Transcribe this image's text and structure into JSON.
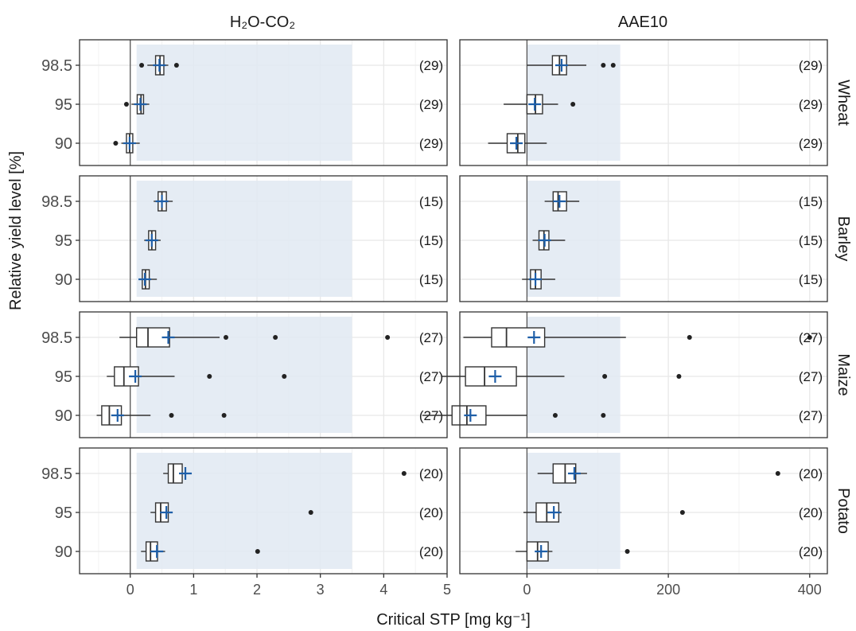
{
  "chart_data": {
    "type": "boxplot",
    "layout": "faceted grid: 4 crop rows x 2 method columns, horizontal boxes",
    "col_titles": [
      "H₂O-CO₂",
      "AAE10"
    ],
    "row_titles": [
      "Wheat",
      "Barley",
      "Maize",
      "Potato"
    ],
    "xlabel": "Critical STP [mg kg⁻¹]",
    "ylabel": "Relative yield level [%]",
    "y_categories": [
      "98.5",
      "95",
      "90"
    ],
    "columns": [
      {
        "name": "H₂O-CO₂",
        "xlim": [
          -0.8,
          5.0
        ],
        "xticks": [
          0,
          1,
          2,
          3,
          4,
          5
        ],
        "shaded_range": [
          0.1,
          3.5
        ],
        "ref_line": 0
      },
      {
        "name": "AAE10",
        "xlim": [
          -95,
          425
        ],
        "xticks": [
          0,
          200,
          400
        ],
        "shaded_range": [
          0,
          132
        ],
        "ref_line": 0
      }
    ],
    "colors": {
      "mean_marker": "#1f5fa8",
      "shaded": "#e1e9f2",
      "box": "#333333",
      "grid": "#e8e8e8"
    },
    "panels": [
      {
        "crop": "Wheat",
        "method": "H₂O-CO₂",
        "boxes": [
          {
            "level": "98.5",
            "n": "(29)",
            "wlo": 0.27,
            "q1": 0.4,
            "median": 0.47,
            "q3": 0.53,
            "whi": 0.6,
            "mean": 0.46,
            "outliers": [
              0.18,
              0.73
            ]
          },
          {
            "level": "95",
            "n": "(29)",
            "wlo": 0.02,
            "q1": 0.11,
            "median": 0.17,
            "q3": 0.21,
            "whi": 0.3,
            "mean": 0.16,
            "outliers": [
              -0.06
            ]
          },
          {
            "level": "90",
            "n": "(29)",
            "wlo": -0.14,
            "q1": -0.06,
            "median": -0.01,
            "q3": 0.04,
            "whi": 0.15,
            "mean": -0.01,
            "outliers": [
              -0.23
            ]
          }
        ]
      },
      {
        "crop": "Wheat",
        "method": "AAE10",
        "boxes": [
          {
            "level": "98.5",
            "n": "(29)",
            "wlo": 0,
            "q1": 36,
            "median": 46,
            "q3": 56,
            "whi": 84,
            "mean": 49,
            "outliers": [
              108,
              122
            ]
          },
          {
            "level": "95",
            "n": "(29)",
            "wlo": -33,
            "q1": 0,
            "median": 12,
            "q3": 22,
            "whi": 44,
            "mean": 11,
            "outliers": [
              65
            ]
          },
          {
            "level": "90",
            "n": "(29)",
            "wlo": -55,
            "q1": -28,
            "median": -13,
            "q3": -3,
            "whi": 28,
            "mean": -15,
            "outliers": []
          }
        ]
      },
      {
        "crop": "Barley",
        "method": "H₂O-CO₂",
        "boxes": [
          {
            "level": "98.5",
            "n": "(15)",
            "wlo": 0.37,
            "q1": 0.44,
            "median": 0.5,
            "q3": 0.57,
            "whi": 0.67,
            "mean": 0.5,
            "outliers": []
          },
          {
            "level": "95",
            "n": "(15)",
            "wlo": 0.22,
            "q1": 0.29,
            "median": 0.34,
            "q3": 0.4,
            "whi": 0.48,
            "mean": 0.34,
            "outliers": []
          },
          {
            "level": "90",
            "n": "(15)",
            "wlo": 0.14,
            "q1": 0.19,
            "median": 0.24,
            "q3": 0.3,
            "whi": 0.42,
            "mean": 0.23,
            "outliers": []
          }
        ]
      },
      {
        "crop": "Barley",
        "method": "AAE10",
        "boxes": [
          {
            "level": "98.5",
            "n": "(15)",
            "wlo": 25,
            "q1": 37,
            "median": 44,
            "q3": 56,
            "whi": 74,
            "mean": 46,
            "outliers": []
          },
          {
            "level": "95",
            "n": "(15)",
            "wlo": 8,
            "q1": 17,
            "median": 24,
            "q3": 31,
            "whi": 54,
            "mean": 25,
            "outliers": []
          },
          {
            "level": "90",
            "n": "(15)",
            "wlo": -7,
            "q1": 5,
            "median": 12,
            "q3": 20,
            "whi": 40,
            "mean": 12,
            "outliers": []
          }
        ]
      },
      {
        "crop": "Maize",
        "method": "H₂O-CO₂",
        "boxes": [
          {
            "level": "98.5",
            "n": "(27)",
            "wlo": -0.17,
            "q1": 0.1,
            "median": 0.28,
            "q3": 0.62,
            "whi": 1.41,
            "mean": 0.6,
            "outliers": [
              1.51,
              2.29,
              4.06
            ]
          },
          {
            "level": "95",
            "n": "(27)",
            "wlo": -0.37,
            "q1": -0.25,
            "median": -0.1,
            "q3": 0.13,
            "whi": 0.7,
            "mean": 0.08,
            "outliers": [
              1.25,
              2.43
            ]
          },
          {
            "level": "90",
            "n": "(27)",
            "wlo": -0.53,
            "q1": -0.45,
            "median": -0.33,
            "q3": -0.14,
            "whi": 0.32,
            "mean": -0.2,
            "outliers": [
              0.65,
              1.48
            ]
          }
        ]
      },
      {
        "crop": "Maize",
        "method": "AAE10",
        "boxes": [
          {
            "level": "98.5",
            "n": "(27)",
            "wlo": -90,
            "q1": -50,
            "median": -29,
            "q3": 25,
            "whi": 140,
            "mean": 10,
            "outliers": [
              230,
              400
            ]
          },
          {
            "level": "95",
            "n": "(27)",
            "wlo": -120,
            "q1": -87,
            "median": -60,
            "q3": -15,
            "whi": 53,
            "mean": -45,
            "outliers": [
              110,
              215
            ]
          },
          {
            "level": "90",
            "n": "(27)",
            "wlo": -148,
            "q1": -106,
            "median": -85,
            "q3": -58,
            "whi": 0,
            "mean": -80,
            "outliers": [
              40,
              108
            ]
          }
        ]
      },
      {
        "crop": "Potato",
        "method": "H₂O-CO₂",
        "boxes": [
          {
            "level": "98.5",
            "n": "(20)",
            "wlo": 0.52,
            "q1": 0.6,
            "median": 0.68,
            "q3": 0.82,
            "whi": 0.95,
            "mean": 0.87,
            "outliers": [
              4.32
            ]
          },
          {
            "level": "95",
            "n": "(20)",
            "wlo": 0.32,
            "q1": 0.4,
            "median": 0.48,
            "q3": 0.6,
            "whi": 0.65,
            "mean": 0.57,
            "outliers": [
              2.85
            ]
          },
          {
            "level": "90",
            "n": "(20)",
            "wlo": 0.17,
            "q1": 0.25,
            "median": 0.32,
            "q3": 0.43,
            "whi": 0.55,
            "mean": 0.42,
            "outliers": [
              2.01
            ]
          }
        ]
      },
      {
        "crop": "Potato",
        "method": "AAE10",
        "boxes": [
          {
            "level": "98.5",
            "n": "(20)",
            "wlo": 15,
            "q1": 37,
            "median": 54,
            "q3": 69,
            "whi": 85,
            "mean": 67,
            "outliers": [
              355
            ]
          },
          {
            "level": "95",
            "n": "(20)",
            "wlo": -5,
            "q1": 13,
            "median": 28,
            "q3": 45,
            "whi": 49,
            "mean": 38,
            "outliers": [
              220
            ]
          },
          {
            "level": "90",
            "n": "(20)",
            "wlo": -16,
            "q1": 0,
            "median": 15,
            "q3": 30,
            "whi": 36,
            "mean": 20,
            "outliers": [
              142
            ]
          }
        ]
      }
    ]
  }
}
